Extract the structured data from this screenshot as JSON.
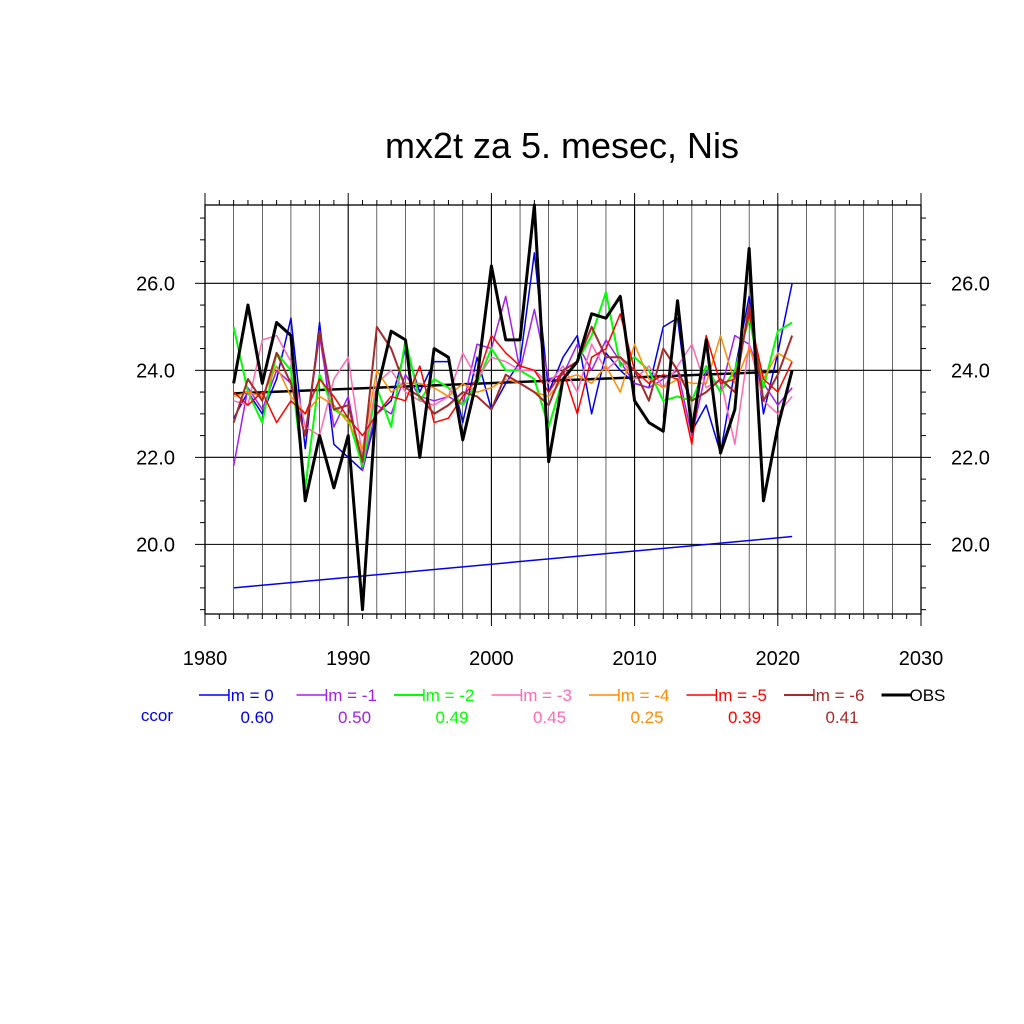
{
  "chart_data": {
    "type": "line",
    "title": "mx2t za 5. mesec, Nis",
    "xlabel": "",
    "ylabel": "",
    "xlim": [
      1980,
      2030
    ],
    "ylim": [
      18.4,
      27.8
    ],
    "x_ticks": [
      "1980",
      "1990",
      "2000",
      "2010",
      "2020",
      "2030"
    ],
    "y_ticks": [
      "20.0",
      "22.0",
      "24.0",
      "26.0"
    ],
    "grid": true,
    "legend_placement": "bottom",
    "years": [
      1982,
      1983,
      1984,
      1985,
      1986,
      1987,
      1988,
      1989,
      1990,
      1991,
      1992,
      1993,
      1994,
      1995,
      1996,
      1997,
      1998,
      1999,
      2000,
      2001,
      2002,
      2003,
      2004,
      2005,
      2006,
      2007,
      2008,
      2009,
      2010,
      2011,
      2012,
      2013,
      2014,
      2015,
      2016,
      2017,
      2018,
      2019,
      2020,
      2021
    ],
    "ccor_label": "ccor",
    "series": [
      {
        "name": "lm = 0",
        "color": "#0000ee",
        "ccor": "0.60",
        "width": 1.5,
        "values": [
          22.9,
          23.5,
          23.0,
          23.8,
          25.2,
          22.2,
          25.1,
          22.3,
          22.0,
          21.7,
          23.0,
          23.3,
          24.5,
          23.5,
          24.2,
          24.2,
          22.8,
          24.3,
          23.1,
          23.7,
          24.2,
          26.7,
          23.5,
          24.3,
          24.8,
          23.0,
          24.4,
          24.0,
          23.7,
          23.6,
          25.0,
          25.2,
          22.6,
          23.2,
          22.1,
          24.0,
          25.7,
          23.0,
          24.4,
          26.0
        ]
      },
      {
        "name": "lm = -1",
        "color": "#a020f0",
        "ccor": "0.50",
        "width": 1.5,
        "values": [
          21.8,
          23.6,
          23.1,
          24.0,
          23.7,
          22.5,
          24.8,
          22.7,
          23.4,
          21.7,
          23.2,
          23.0,
          23.9,
          23.4,
          23.3,
          23.4,
          23.2,
          24.6,
          24.5,
          25.7,
          24.0,
          25.4,
          23.8,
          23.9,
          24.6,
          24.0,
          24.7,
          24.2,
          23.7,
          23.6,
          23.8,
          24.0,
          22.5,
          24.0,
          23.5,
          24.8,
          24.6,
          23.7,
          23.2,
          23.6
        ]
      },
      {
        "name": "lm = -2",
        "color": "#00ff00",
        "ccor": "0.49",
        "width": 2.0,
        "values": [
          25.0,
          23.5,
          22.8,
          24.4,
          24.0,
          21.3,
          23.9,
          23.1,
          22.9,
          21.8,
          23.6,
          22.7,
          24.7,
          23.3,
          23.8,
          23.6,
          23.2,
          23.7,
          24.5,
          24.0,
          24.0,
          23.8,
          22.7,
          23.8,
          24.2,
          24.8,
          25.8,
          24.1,
          24.3,
          24.0,
          23.3,
          23.4,
          23.3,
          24.1,
          23.5,
          24.0,
          25.2,
          23.6,
          24.9,
          25.1
        ]
      },
      {
        "name": "lm = -3",
        "color": "#ff69b4",
        "ccor": "0.45",
        "width": 1.5,
        "values": [
          23.3,
          23.2,
          24.7,
          24.8,
          24.2,
          22.7,
          22.5,
          23.8,
          24.3,
          22.0,
          23.7,
          24.0,
          23.5,
          23.3,
          23.2,
          23.4,
          24.4,
          23.8,
          24.3,
          24.2,
          24.0,
          24.0,
          23.7,
          24.1,
          23.5,
          24.6,
          24.0,
          24.3,
          23.8,
          24.1,
          23.6,
          24.1,
          24.6,
          23.6,
          23.8,
          22.3,
          24.6,
          23.3,
          23.0,
          23.4
        ]
      },
      {
        "name": "lm = -4",
        "color": "#ff8c00",
        "ccor": "0.25",
        "width": 1.5,
        "values": [
          23.4,
          23.5,
          23.4,
          24.1,
          23.4,
          23.0,
          23.4,
          23.2,
          22.8,
          22.2,
          24.0,
          23.5,
          23.7,
          23.7,
          23.6,
          23.4,
          23.7,
          23.5,
          23.6,
          23.8,
          23.7,
          23.5,
          23.4,
          23.8,
          23.9,
          23.7,
          24.1,
          23.5,
          24.6,
          23.8,
          23.6,
          23.8,
          23.7,
          23.7,
          24.8,
          23.7,
          24.5,
          23.8,
          24.4,
          24.2
        ]
      },
      {
        "name": "lm = -5",
        "color": "#ff0000",
        "ccor": "0.39",
        "width": 1.5,
        "values": [
          23.5,
          23.2,
          23.5,
          22.8,
          23.3,
          23.0,
          23.8,
          23.4,
          22.9,
          22.5,
          23.0,
          23.4,
          23.3,
          24.1,
          22.8,
          22.9,
          23.4,
          23.8,
          24.8,
          24.4,
          24.1,
          24.0,
          23.5,
          24.0,
          23.0,
          24.3,
          24.5,
          25.3,
          24.0,
          23.7,
          23.9,
          23.8,
          22.3,
          24.8,
          23.7,
          23.8,
          25.3,
          23.8,
          23.5,
          24.2
        ]
      },
      {
        "name": "lm = -6",
        "color": "#a52a2a",
        "ccor": "0.41",
        "width": 2.0,
        "values": [
          22.8,
          23.8,
          23.3,
          24.4,
          23.7,
          22.5,
          24.9,
          23.1,
          23.2,
          21.9,
          25.0,
          24.5,
          23.6,
          23.4,
          23.0,
          23.2,
          23.5,
          23.4,
          23.1,
          23.9,
          23.7,
          23.5,
          23.2,
          24.0,
          24.2,
          25.0,
          24.3,
          24.3,
          24.0,
          23.3,
          24.5,
          24.0,
          23.3,
          23.5,
          23.8,
          23.5,
          25.5,
          23.3,
          23.9,
          24.8
        ]
      },
      {
        "name": "OBS",
        "color": "#000000",
        "ccor": "",
        "width": 3.0,
        "values": [
          23.7,
          25.5,
          23.7,
          25.1,
          24.8,
          21.0,
          22.5,
          21.3,
          22.5,
          18.5,
          23.5,
          24.9,
          24.7,
          22.0,
          24.5,
          24.3,
          22.4,
          23.8,
          26.4,
          24.7,
          24.7,
          27.8,
          21.9,
          23.8,
          24.2,
          25.3,
          25.2,
          25.7,
          23.3,
          22.8,
          22.6,
          25.6,
          22.6,
          24.7,
          22.1,
          23.1,
          26.8,
          21.0,
          22.7,
          24.0
        ]
      }
    ],
    "trend_lines": [
      {
        "color": "#000000",
        "x": [
          1982,
          2020
        ],
        "y": [
          23.47,
          23.97
        ]
      },
      {
        "color": "#0000ee",
        "x": [
          1982,
          2021
        ],
        "y": [
          19.0,
          20.18
        ]
      }
    ]
  }
}
